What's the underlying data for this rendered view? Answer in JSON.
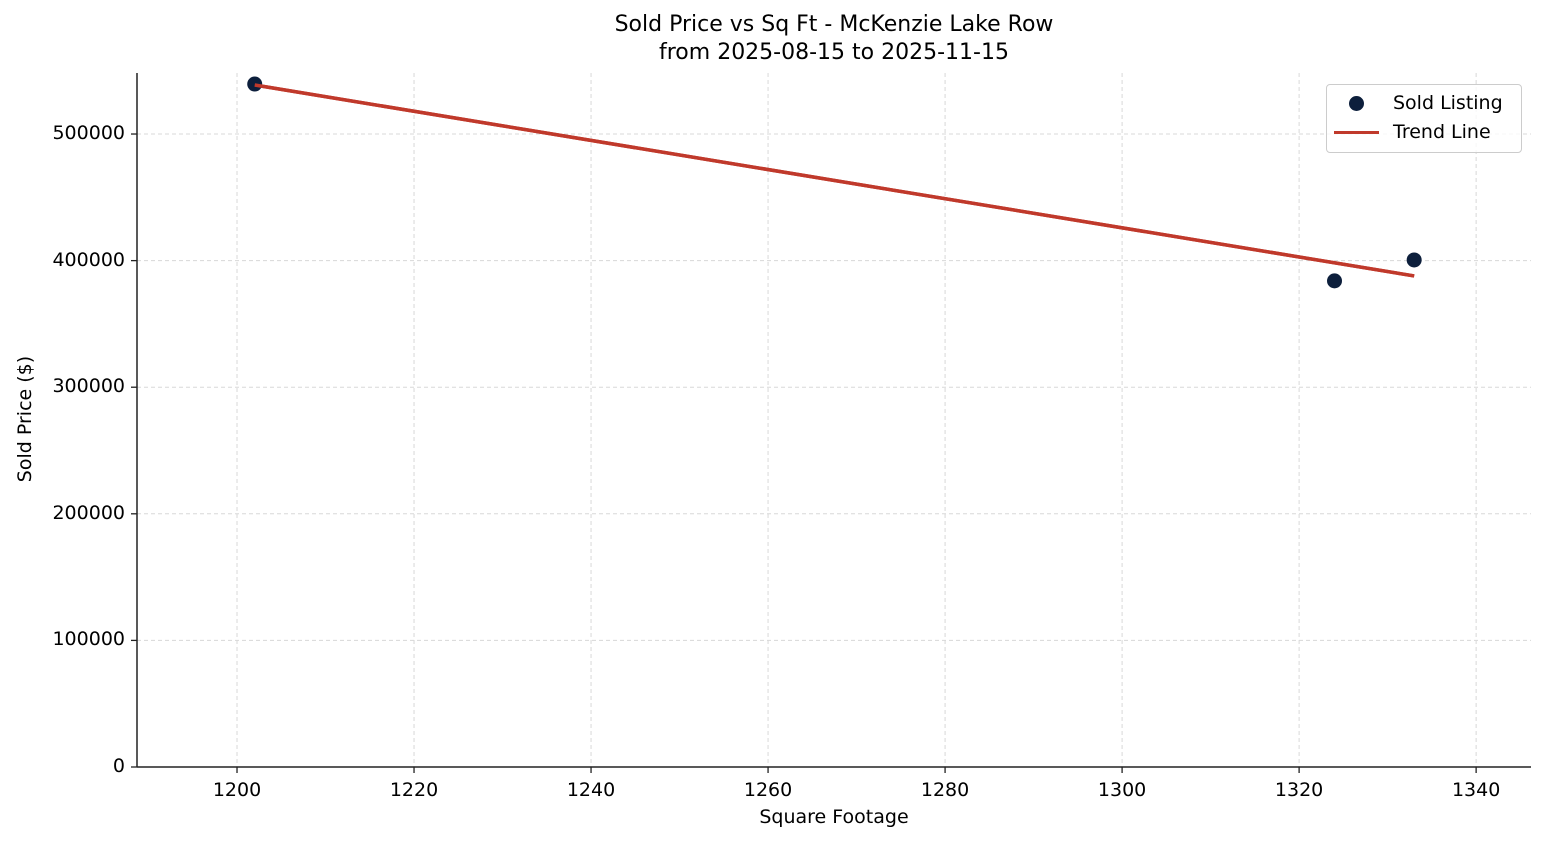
{
  "chart_data": {
    "type": "scatter",
    "title": "Sold Price vs Sq Ft - McKenzie Lake Row",
    "subtitle": "from 2025-08-15 to 2025-11-15",
    "xlabel": "Square Footage",
    "ylabel": "Sold Price ($)",
    "xlim": [
      1188.7,
      1346.2
    ],
    "ylim": [
      0,
      548200
    ],
    "xticks": [
      1200,
      1220,
      1240,
      1260,
      1280,
      1300,
      1320,
      1340
    ],
    "yticks": [
      0,
      100000,
      200000,
      300000,
      400000,
      500000
    ],
    "grid": true,
    "legend_position": "upper right",
    "legend": [
      "Sold Listing",
      "Trend Line"
    ],
    "series": [
      {
        "name": "Sold Listing",
        "type": "scatter",
        "color": "#0d1f3c",
        "points": [
          {
            "x": 1202,
            "y": 539500
          },
          {
            "x": 1324,
            "y": 384000
          },
          {
            "x": 1333,
            "y": 400500
          }
        ]
      },
      {
        "name": "Trend Line",
        "type": "line",
        "color": "#c0392b",
        "points": [
          {
            "x": 1202,
            "y": 538700
          },
          {
            "x": 1333,
            "y": 387900
          }
        ]
      }
    ]
  }
}
